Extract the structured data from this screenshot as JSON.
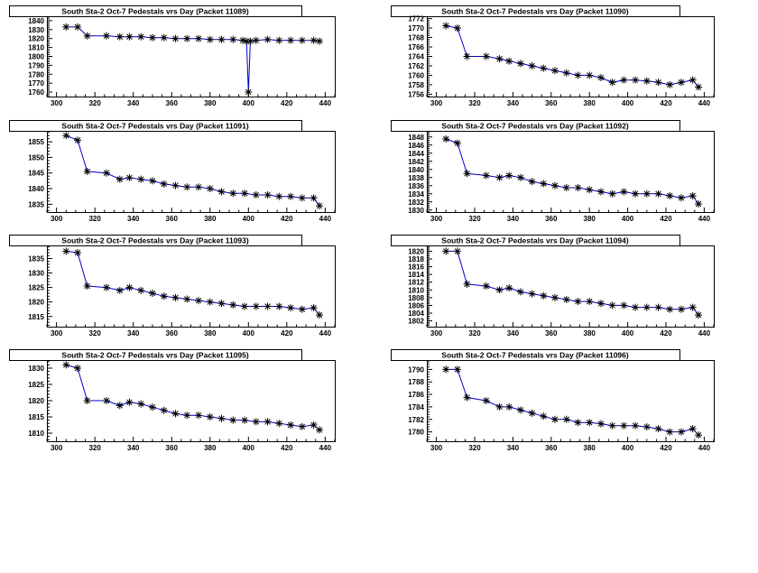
{
  "chart_data": [
    {
      "type": "line",
      "title": "South Sta-2 Oct-7 Pedestals vrs Day (Packet 11089)",
      "xlim": [
        295,
        445
      ],
      "ylim": [
        1755,
        1845
      ],
      "xticks": [
        300,
        320,
        340,
        360,
        380,
        400,
        420,
        440
      ],
      "yticks": [
        1760,
        1770,
        1780,
        1790,
        1800,
        1810,
        1820,
        1830,
        1840
      ],
      "x": [
        305,
        311,
        316,
        326,
        333,
        338,
        344,
        350,
        356,
        362,
        368,
        374,
        380,
        386,
        392,
        397,
        399,
        400,
        401,
        404,
        410,
        416,
        422,
        428,
        434,
        437
      ],
      "y": [
        1833,
        1833,
        1823,
        1823,
        1822,
        1822,
        1822,
        1821,
        1821,
        1820,
        1820,
        1820,
        1819,
        1819,
        1819,
        1818,
        1817,
        1760,
        1817,
        1818,
        1819,
        1818,
        1818,
        1818,
        1818,
        1817
      ]
    },
    {
      "type": "line",
      "title": "South Sta-2 Oct-7 Pedestals vrs Day (Packet 11090)",
      "xlim": [
        295,
        445
      ],
      "ylim": [
        1755.5,
        1772.5
      ],
      "xticks": [
        300,
        320,
        340,
        360,
        380,
        400,
        420,
        440
      ],
      "yticks": [
        1756,
        1758,
        1760,
        1762,
        1764,
        1766,
        1768,
        1770,
        1772
      ],
      "x": [
        305,
        311,
        316,
        326,
        333,
        338,
        344,
        350,
        356,
        362,
        368,
        374,
        380,
        386,
        392,
        398,
        404,
        410,
        416,
        422,
        428,
        434,
        437
      ],
      "y": [
        1770.5,
        1770,
        1764,
        1764,
        1763.5,
        1763,
        1762.5,
        1762,
        1761.5,
        1761,
        1760.5,
        1760,
        1760,
        1759.5,
        1758.5,
        1759,
        1759,
        1758.8,
        1758.5,
        1758,
        1758.5,
        1759,
        1757.5
      ]
    },
    {
      "type": "line",
      "title": "South Sta-2 Oct-7 Pedestals vrs Day (Packet 11091)",
      "xlim": [
        295,
        445
      ],
      "ylim": [
        1832.5,
        1858.5
      ],
      "xticks": [
        300,
        320,
        340,
        360,
        380,
        400,
        420,
        440
      ],
      "yticks": [
        1835,
        1840,
        1845,
        1850,
        1855
      ],
      "x": [
        305,
        311,
        316,
        326,
        333,
        338,
        344,
        350,
        356,
        362,
        368,
        374,
        380,
        386,
        392,
        398,
        404,
        410,
        416,
        422,
        428,
        434,
        437
      ],
      "y": [
        1857,
        1855.5,
        1845.5,
        1845,
        1843,
        1843.5,
        1843,
        1842.5,
        1841.5,
        1841,
        1840.5,
        1840.5,
        1840,
        1839,
        1838.5,
        1838.5,
        1838,
        1838,
        1837.5,
        1837.5,
        1837,
        1837,
        1834.5
      ]
    },
    {
      "type": "line",
      "title": "South Sta-2 Oct-7 Pedestals vrs Day (Packet 11092)",
      "xlim": [
        295,
        445
      ],
      "ylim": [
        1829.5,
        1849.5
      ],
      "xticks": [
        300,
        320,
        340,
        360,
        380,
        400,
        420,
        440
      ],
      "yticks": [
        1830,
        1832,
        1834,
        1836,
        1838,
        1840,
        1842,
        1844,
        1846,
        1848
      ],
      "x": [
        305,
        311,
        316,
        326,
        333,
        338,
        344,
        350,
        356,
        362,
        368,
        374,
        380,
        386,
        392,
        398,
        404,
        410,
        416,
        422,
        428,
        434,
        437
      ],
      "y": [
        1847.5,
        1846.5,
        1839,
        1838.5,
        1838,
        1838.5,
        1838,
        1837,
        1836.5,
        1836,
        1835.5,
        1835.5,
        1835,
        1834.5,
        1834,
        1834.5,
        1834,
        1834,
        1834,
        1833.5,
        1833,
        1833.5,
        1831.5
      ]
    },
    {
      "type": "line",
      "title": "South Sta-2 Oct-7 Pedestals vrs Day (Packet 11093)",
      "xlim": [
        295,
        445
      ],
      "ylim": [
        1811.5,
        1839.5
      ],
      "xticks": [
        300,
        320,
        340,
        360,
        380,
        400,
        420,
        440
      ],
      "yticks": [
        1815,
        1820,
        1825,
        1830,
        1835
      ],
      "x": [
        305,
        311,
        316,
        326,
        333,
        338,
        344,
        350,
        356,
        362,
        368,
        374,
        380,
        386,
        392,
        398,
        404,
        410,
        416,
        422,
        428,
        434,
        437
      ],
      "y": [
        1837.5,
        1837,
        1825.5,
        1825,
        1824,
        1825,
        1824,
        1823,
        1822,
        1821.5,
        1821,
        1820.5,
        1820,
        1819.5,
        1819,
        1818.5,
        1818.5,
        1818.5,
        1818.5,
        1818,
        1817.5,
        1818,
        1815.5
      ]
    },
    {
      "type": "line",
      "title": "South Sta-2 Oct-7 Pedestals vrs Day (Packet 11094)",
      "xlim": [
        295,
        445
      ],
      "ylim": [
        1800.5,
        1821.5
      ],
      "xticks": [
        300,
        320,
        340,
        360,
        380,
        400,
        420,
        440
      ],
      "yticks": [
        1802,
        1804,
        1806,
        1808,
        1810,
        1812,
        1814,
        1816,
        1818,
        1820
      ],
      "x": [
        305,
        311,
        316,
        326,
        333,
        338,
        344,
        350,
        356,
        362,
        368,
        374,
        380,
        386,
        392,
        398,
        404,
        410,
        416,
        422,
        428,
        434,
        437
      ],
      "y": [
        1820,
        1820,
        1811.5,
        1811,
        1810,
        1810.5,
        1809.5,
        1809,
        1808.5,
        1808,
        1807.5,
        1807,
        1807,
        1806.5,
        1806,
        1806,
        1805.5,
        1805.5,
        1805.5,
        1805,
        1805,
        1805.5,
        1803.5
      ]
    },
    {
      "type": "line",
      "title": "South Sta-2 Oct-7 Pedestals vrs Day (Packet 11095)",
      "xlim": [
        295,
        445
      ],
      "ylim": [
        1807.5,
        1832.5
      ],
      "xticks": [
        300,
        320,
        340,
        360,
        380,
        400,
        420,
        440
      ],
      "yticks": [
        1810,
        1815,
        1820,
        1825,
        1830
      ],
      "x": [
        305,
        311,
        316,
        326,
        333,
        338,
        344,
        350,
        356,
        362,
        368,
        374,
        380,
        386,
        392,
        398,
        404,
        410,
        416,
        422,
        428,
        434,
        437
      ],
      "y": [
        1831,
        1830,
        1820,
        1820,
        1818.5,
        1819.5,
        1819,
        1818,
        1817,
        1816,
        1815.5,
        1815.5,
        1815,
        1814.5,
        1814,
        1814,
        1813.5,
        1813.5,
        1813,
        1812.5,
        1812,
        1812.5,
        1811
      ]
    },
    {
      "type": "line",
      "title": "South Sta-2 Oct-7 Pedestals vrs Day (Packet 11096)",
      "xlim": [
        295,
        445
      ],
      "ylim": [
        1778.5,
        1791.5
      ],
      "xticks": [
        300,
        320,
        340,
        360,
        380,
        400,
        420,
        440
      ],
      "yticks": [
        1780,
        1782,
        1784,
        1786,
        1788,
        1790
      ],
      "x": [
        305,
        311,
        316,
        326,
        333,
        338,
        344,
        350,
        356,
        362,
        368,
        374,
        380,
        386,
        392,
        398,
        404,
        410,
        416,
        422,
        428,
        434,
        437
      ],
      "y": [
        1790,
        1790,
        1785.5,
        1785,
        1784,
        1784,
        1783.5,
        1783,
        1782.5,
        1782,
        1782,
        1781.5,
        1781.5,
        1781.3,
        1781,
        1781,
        1781,
        1780.8,
        1780.5,
        1780,
        1780,
        1780.5,
        1779.5
      ]
    }
  ],
  "colors": {
    "line": "#0000cc",
    "marker": "#000000",
    "frame": "#000000"
  }
}
